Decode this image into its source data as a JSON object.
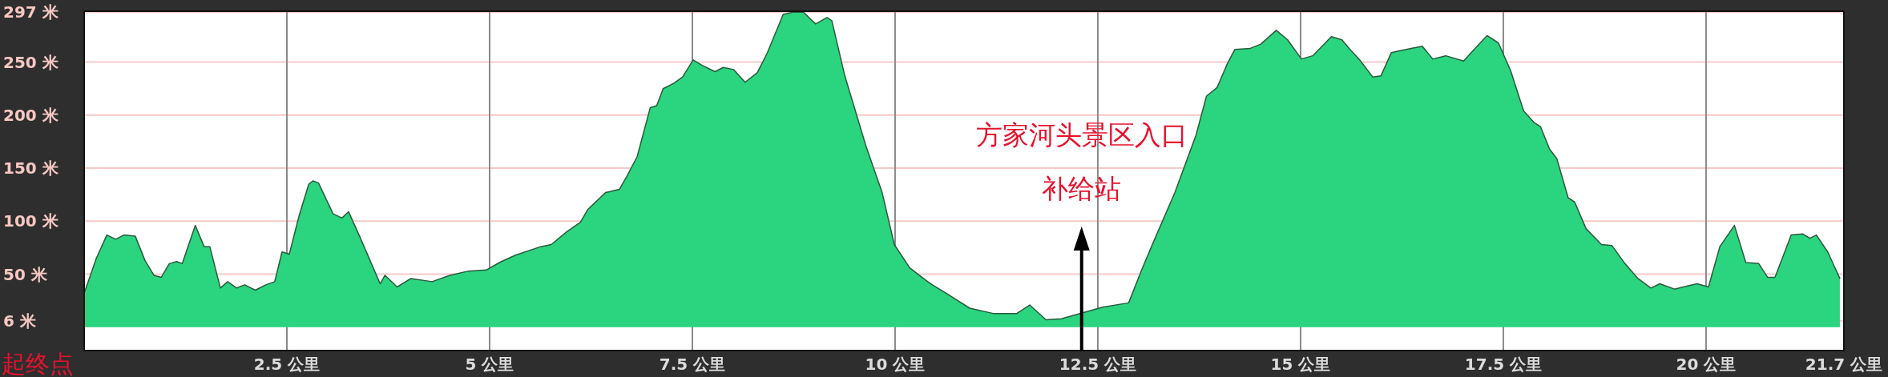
{
  "chart_data": {
    "type": "area",
    "xlim": [
      0,
      21.7
    ],
    "xticks": [
      {
        "value": 2.5,
        "label": "2.5 公里"
      },
      {
        "value": 5,
        "label": "5 公里"
      },
      {
        "value": 7.5,
        "label": "7.5 公里"
      },
      {
        "value": 10,
        "label": "10 公里"
      },
      {
        "value": 12.5,
        "label": "12.5 公里"
      },
      {
        "value": 15,
        "label": "15 公里"
      },
      {
        "value": 17.5,
        "label": "17.5 公里"
      },
      {
        "value": 20,
        "label": "20 公里"
      },
      {
        "value": 21.7,
        "label": "21.7 公里"
      }
    ],
    "ylim": [
      -22,
      298
    ],
    "yticks": [
      {
        "value": 6,
        "label": "6 米"
      },
      {
        "value": 50,
        "label": "50 米"
      },
      {
        "value": 100,
        "label": "100 米"
      },
      {
        "value": 150,
        "label": "150 米"
      },
      {
        "value": 200,
        "label": "200 米"
      },
      {
        "value": 250,
        "label": "250 米"
      },
      {
        "value": 297,
        "label": "297 米"
      }
    ],
    "grid": true,
    "annotations": [
      "起终点",
      "方家河头景区入口"
    ],
    "ref_lines": [
      {
        "axis": "x",
        "value": 12.3,
        "label": "补给站",
        "color": "#000000"
      }
    ],
    "series": [
      {
        "color": "#2bd47f",
        "x": [
          0,
          0.15,
          0.28,
          0.39,
          0.49,
          0.63,
          0.75,
          0.86,
          0.95,
          1.05,
          1.14,
          1.21,
          1.37,
          1.48,
          1.55,
          1.68,
          1.77,
          1.88,
          1.98,
          2.11,
          2.24,
          2.35,
          2.44,
          2.53,
          2.65,
          2.77,
          2.82,
          2.89,
          3.07,
          3.18,
          3.26,
          3.39,
          3.65,
          3.71,
          3.86,
          4.03,
          4.29,
          4.51,
          4.74,
          4.96,
          5.12,
          5.32,
          5.63,
          5.76,
          5.95,
          6.12,
          6.21,
          6.43,
          6.6,
          6.69,
          6.82,
          6.98,
          7.06,
          7.14,
          7.27,
          7.38,
          7.51,
          7.62,
          7.78,
          7.88,
          8.01,
          8.15,
          8.3,
          8.42,
          8.62,
          8.74,
          8.87,
          9.02,
          9.16,
          9.22,
          9.38,
          9.64,
          9.84,
          9.99,
          10.18,
          10.35,
          10.44,
          10.63,
          10.92,
          11.21,
          11.5,
          11.66,
          11.86,
          12.05,
          12.56,
          12.88,
          13.04,
          13.2,
          13.45,
          13.71,
          13.84,
          13.97,
          14.1,
          14.19,
          14.38,
          14.51,
          14.7,
          14.84,
          15.01,
          15.15,
          15.38,
          15.51,
          15.61,
          15.73,
          15.89,
          15.99,
          16.12,
          16.24,
          16.5,
          16.63,
          16.79,
          17.01,
          17.14,
          17.3,
          17.44,
          17.59,
          17.75,
          17.88,
          17.96,
          18.07,
          18.16,
          18.3,
          18.38,
          18.52,
          18.71,
          18.84,
          19.0,
          19.16,
          19.32,
          19.43,
          19.61,
          19.77,
          19.89,
          20.03,
          20.17,
          20.35,
          20.49,
          20.65,
          20.76,
          20.85,
          21.05,
          21.19,
          21.28,
          21.36,
          21.5,
          21.65
        ],
        "values": [
          32,
          65,
          87,
          83,
          87,
          86,
          63,
          49,
          47,
          60,
          62,
          60,
          96,
          76,
          76,
          37,
          43,
          37,
          40,
          35,
          40,
          43,
          71,
          69,
          105,
          135,
          138,
          136,
          107,
          103,
          109,
          87,
          41,
          49,
          38,
          46,
          43,
          49,
          53,
          54,
          61,
          68,
          76,
          78,
          90,
          99,
          111,
          127,
          130,
          142,
          161,
          207,
          209,
          225,
          230,
          236,
          252,
          247,
          241,
          245,
          243,
          231,
          240,
          258,
          295,
          297,
          297,
          286,
          292,
          289,
          237,
          171,
          127,
          78,
          56,
          46,
          41,
          32,
          18,
          13,
          13,
          21,
          7,
          8,
          19,
          23,
          54,
          83,
          127,
          181,
          218,
          226,
          249,
          262,
          263,
          267,
          280,
          271,
          253,
          256,
          274,
          271,
          262,
          252,
          236,
          237,
          259,
          261,
          265,
          253,
          256,
          251,
          262,
          275,
          268,
          242,
          204,
          193,
          189,
          168,
          159,
          122,
          118,
          93,
          78,
          77,
          60,
          46,
          37,
          41,
          36,
          39,
          41,
          38,
          76,
          96,
          61,
          60,
          47,
          47,
          87,
          88,
          84,
          87,
          71,
          46
        ]
      }
    ]
  }
}
